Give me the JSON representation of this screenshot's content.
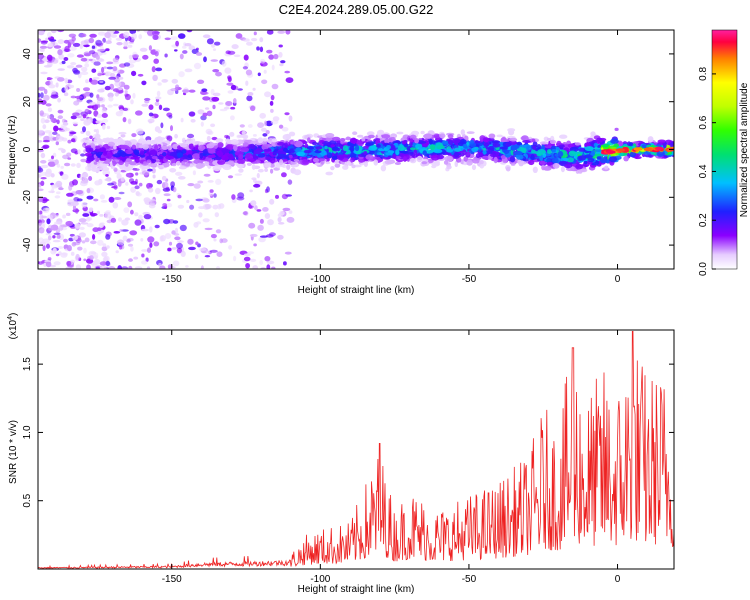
{
  "title": "C2E4.2024.289.05.00.G22",
  "chart_data": [
    {
      "type": "heatmap",
      "title": "",
      "xlabel": "Height of straight line (km)",
      "ylabel": "Frequency (Hz)",
      "xlim": [
        -195,
        19
      ],
      "ylim": [
        -50,
        50
      ],
      "xticks": [
        -150,
        -100,
        -50,
        0
      ],
      "yticks": [
        -40,
        -20,
        0,
        20,
        40
      ],
      "colorbar": {
        "label": "Normalized spectral amplitude",
        "range": [
          0,
          0.98
        ],
        "ticks": [
          "0.0",
          "0.2",
          "0.4",
          "0.6",
          "0.8"
        ]
      },
      "band_center_hz": [
        {
          "x": -170,
          "y": -2
        },
        {
          "x": -140,
          "y": -2
        },
        {
          "x": -110,
          "y": -1
        },
        {
          "x": -80,
          "y": 0
        },
        {
          "x": -50,
          "y": 1
        },
        {
          "x": -30,
          "y": -1
        },
        {
          "x": -15,
          "y": -3
        },
        {
          "x": -5,
          "y": -1
        },
        {
          "x": 5,
          "y": 0
        },
        {
          "x": 19,
          "y": 0
        }
      ],
      "peak_amplitude_by_height": [
        {
          "x": -170,
          "amp": 0.25
        },
        {
          "x": -130,
          "amp": 0.3
        },
        {
          "x": -100,
          "amp": 0.45
        },
        {
          "x": -70,
          "amp": 0.45
        },
        {
          "x": -40,
          "amp": 0.45
        },
        {
          "x": -20,
          "amp": 0.5
        },
        {
          "x": -10,
          "amp": 0.6
        },
        {
          "x": 0,
          "amp": 0.95
        },
        {
          "x": 15,
          "amp": 0.9
        }
      ]
    },
    {
      "type": "line",
      "title": "",
      "xlabel": "Height of straight line (km)",
      "ylabel": "SNR (10 * v/v)",
      "y_multiplier": "(x10^4)",
      "xlim": [
        -195,
        19
      ],
      "ylim": [
        0,
        1.75
      ],
      "xticks": [
        -150,
        -100,
        -50,
        0
      ],
      "yticks": [
        0.5,
        1.0,
        1.5
      ],
      "y_unit_scale": 10000,
      "color": "#ee2222",
      "series": [
        {
          "name": "",
          "envelope": [
            {
              "x": -195,
              "max": 0.02
            },
            {
              "x": -150,
              "max": 0.04
            },
            {
              "x": -140,
              "max": 0.08
            },
            {
              "x": -120,
              "max": 0.1
            },
            {
              "x": -110,
              "max": 0.12
            },
            {
              "x": -105,
              "max": 0.25
            },
            {
              "x": -100,
              "max": 0.3
            },
            {
              "x": -90,
              "max": 0.35
            },
            {
              "x": -80,
              "max": 0.9
            },
            {
              "x": -75,
              "max": 0.45
            },
            {
              "x": -70,
              "max": 0.6
            },
            {
              "x": -60,
              "max": 0.45
            },
            {
              "x": -50,
              "max": 0.55
            },
            {
              "x": -40,
              "max": 0.65
            },
            {
              "x": -30,
              "max": 0.85
            },
            {
              "x": -25,
              "max": 1.2
            },
            {
              "x": -20,
              "max": 1.1
            },
            {
              "x": -15,
              "max": 1.65
            },
            {
              "x": -10,
              "max": 1.3
            },
            {
              "x": -5,
              "max": 1.5
            },
            {
              "x": 0,
              "max": 1.35
            },
            {
              "x": 5,
              "max": 1.75
            },
            {
              "x": 10,
              "max": 1.45
            },
            {
              "x": 15,
              "max": 1.5
            },
            {
              "x": 19,
              "max": 1.3
            }
          ]
        }
      ]
    }
  ]
}
